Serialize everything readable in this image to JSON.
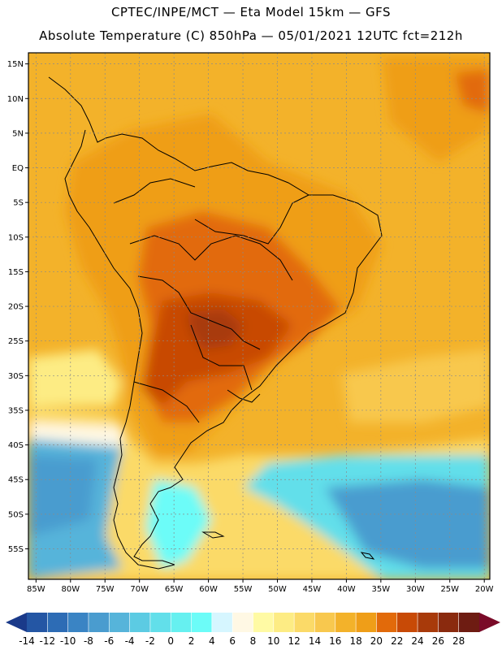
{
  "header": {
    "title_line1": "CPTEC/INPE/MCT —  Eta Model 15km — GFS",
    "title_line2": "Absolute Temperature (C) 850hPa — 05/01/2021 12UTC fct=212h"
  },
  "map": {
    "latitude_labels": [
      "15N",
      "10N",
      "5N",
      "EQ",
      "5S",
      "10S",
      "15S",
      "20S",
      "25S",
      "30S",
      "35S",
      "40S",
      "45S",
      "50S",
      "55S"
    ],
    "longitude_labels": [
      "85W",
      "80W",
      "75W",
      "70W",
      "65W",
      "60W",
      "55W",
      "50W",
      "45W",
      "40W",
      "35W",
      "30W",
      "25W",
      "20W"
    ]
  },
  "colorbar": {
    "labels": [
      "-14",
      "-12",
      "-10",
      "-8",
      "-6",
      "-4",
      "-2",
      "0",
      "2",
      "4",
      "6",
      "8",
      "10",
      "12",
      "14",
      "16",
      "18",
      "20",
      "22",
      "24",
      "26",
      "28"
    ],
    "colors": [
      "#1a3a8a",
      "#2456a4",
      "#2d6cb5",
      "#3a84c4",
      "#4a9ccf",
      "#56b4da",
      "#5ccbe3",
      "#62dfea",
      "#66f0f0",
      "#6cfcf8",
      "#d6f6ff",
      "#fff8e4",
      "#fffaa4",
      "#fdec84",
      "#fbda68",
      "#f8c84e",
      "#f3b22a",
      "#ef9e18",
      "#e26a0a",
      "#c84a06",
      "#a83a0a",
      "#8a2a0e",
      "#6e1c12",
      "#7a0a28"
    ]
  }
}
